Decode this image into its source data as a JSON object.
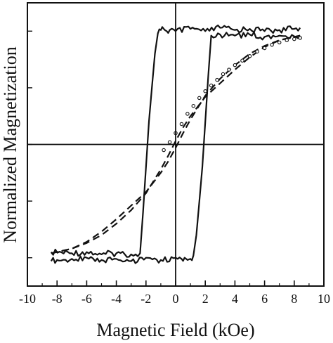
{
  "chart_data": {
    "type": "line",
    "xlabel": "Magnetic Field (kOe)",
    "ylabel": "Normalized Magnetization",
    "xlim": [
      -10,
      10
    ],
    "ylim": [
      -1.25,
      1.25
    ],
    "x_ticks": [
      -10,
      -8,
      -6,
      -4,
      -2,
      0,
      2,
      4,
      6,
      8,
      10
    ],
    "x_tick_labels": [
      "-10",
      "-8",
      "-6",
      "-4",
      "-2",
      "0",
      "2",
      "4",
      "6",
      "8",
      "10"
    ],
    "y_tick_labels": [],
    "grid": false,
    "zero_lines": true,
    "series": [
      {
        "style": "solid",
        "color": "#111111",
        "x": [
          -8.4,
          -7,
          -6,
          -5,
          -4,
          -3,
          -2.4,
          -2.2,
          -2.0,
          -1.8,
          -1.6,
          -1.4,
          -1.2,
          -1.0,
          -0.8,
          -0.6,
          -0.4,
          0,
          1,
          2,
          3,
          4,
          5,
          6,
          7,
          8,
          8.4
        ],
        "y": [
          -0.95,
          -0.96,
          -0.95,
          -0.97,
          -0.96,
          -0.97,
          -0.96,
          -0.6,
          -0.2,
          0.2,
          0.5,
          0.8,
          0.98,
          1.01,
          1.02,
          1.0,
          1.01,
          1.0,
          1.02,
          1.0,
          1.03,
          1.01,
          1.02,
          1.0,
          1.01,
          1.02,
          1.03
        ]
      },
      {
        "style": "solid",
        "color": "#111111",
        "x": [
          8.4,
          7,
          6,
          5,
          4,
          3,
          2.4,
          2.2,
          2.0,
          1.8,
          1.6,
          1.4,
          1.2,
          1.0,
          0.8,
          0.6,
          0.4,
          0,
          -1,
          -2,
          -3,
          -4,
          -5,
          -6,
          -7,
          -8,
          -8.4
        ],
        "y": [
          0.95,
          0.96,
          0.95,
          0.97,
          0.96,
          0.97,
          0.96,
          0.6,
          0.2,
          -0.2,
          -0.5,
          -0.8,
          -0.98,
          -1.01,
          -1.02,
          -1.0,
          -1.01,
          -1.0,
          -1.02,
          -1.0,
          -1.03,
          -1.01,
          -1.02,
          -1.0,
          -1.01,
          -1.02,
          -1.03
        ]
      },
      {
        "style": "dashed",
        "color": "#111111",
        "x": [
          -8.4,
          -7,
          -6,
          -5,
          -4,
          -3,
          -2,
          -1,
          -0.5,
          0,
          0.5,
          1,
          2,
          3,
          4,
          5,
          6,
          7,
          8,
          8.4
        ],
        "y": [
          -0.96,
          -0.92,
          -0.86,
          -0.77,
          -0.66,
          -0.54,
          -0.42,
          -0.25,
          -0.15,
          -0.03,
          0.1,
          0.22,
          0.43,
          0.58,
          0.7,
          0.8,
          0.87,
          0.92,
          0.95,
          0.96
        ]
      },
      {
        "style": "dashed",
        "color": "#111111",
        "x": [
          8.4,
          7,
          6,
          5,
          4,
          3,
          2,
          1,
          0.5,
          0,
          -0.5,
          -1,
          -2,
          -3,
          -4,
          -5,
          -6,
          -7,
          -8,
          -8.4
        ],
        "y": [
          0.96,
          0.92,
          0.86,
          0.77,
          0.66,
          0.54,
          0.42,
          0.25,
          0.15,
          0.03,
          -0.1,
          -0.22,
          -0.43,
          -0.58,
          -0.7,
          -0.8,
          -0.87,
          -0.92,
          -0.95,
          -0.96
        ]
      },
      {
        "style": "markers",
        "color": "#111111",
        "x": [
          -0.8,
          -0.4,
          0,
          0.4,
          0.8,
          1.2,
          1.6,
          2.0,
          2.4,
          2.8,
          3.2,
          3.6,
          4.0,
          4.5,
          5.0,
          5.5,
          6.0,
          6.5,
          7.0,
          7.5,
          8.0,
          8.4
        ],
        "y": [
          -0.05,
          0.02,
          0.1,
          0.18,
          0.27,
          0.34,
          0.41,
          0.47,
          0.52,
          0.57,
          0.62,
          0.66,
          0.7,
          0.74,
          0.78,
          0.82,
          0.85,
          0.88,
          0.9,
          0.92,
          0.93,
          0.94
        ]
      }
    ]
  }
}
